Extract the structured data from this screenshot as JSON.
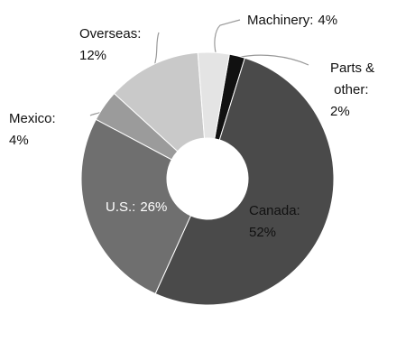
{
  "chart_data": {
    "type": "donut",
    "categories": [
      "Parts & other:",
      "Canada:",
      "U.S.:",
      "Mexico:",
      "Overseas:",
      "Machinery:"
    ],
    "values": [
      2,
      52,
      26,
      4,
      12,
      4
    ],
    "value_labels": [
      "2%",
      "52%",
      "26%",
      "4%",
      "12%",
      "4%"
    ],
    "colors": [
      "#111111",
      "#4a4a4a",
      "#6f6f6f",
      "#9b9b9b",
      "#c9c9c9",
      "#e4e4e4"
    ]
  }
}
